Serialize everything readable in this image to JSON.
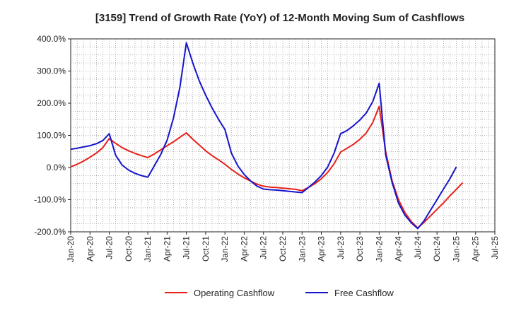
{
  "chart_data": {
    "type": "line",
    "title": "[3159]  Trend of Growth Rate (YoY) of 12-Month Moving Sum of Cashflows",
    "xlabel": "",
    "ylabel": "",
    "ylim": [
      -200,
      400
    ],
    "y_ticks": [
      400,
      300,
      200,
      100,
      0,
      -100,
      -200
    ],
    "y_tick_labels": [
      "400.0%",
      "300.0%",
      "200.0%",
      "100.0%",
      "0.0%",
      "-100.0%",
      "-200.0%"
    ],
    "x_ticks": [
      "2020-01",
      "2020-04",
      "2020-07",
      "2020-10",
      "2021-01",
      "2021-04",
      "2021-07",
      "2021-10",
      "2022-01",
      "2022-04",
      "2022-07",
      "2022-10",
      "2023-01",
      "2023-04",
      "2023-07",
      "2023-10",
      "2024-01",
      "2024-04",
      "2024-07",
      "2024-10",
      "2025-01",
      "2025-04",
      "2025-07"
    ],
    "x_tick_labels": [
      "Jan-20",
      "Apr-20",
      "Jul-20",
      "Oct-20",
      "Jan-21",
      "Apr-21",
      "Jul-21",
      "Oct-21",
      "Jan-22",
      "Apr-22",
      "Jul-22",
      "Oct-22",
      "Jan-23",
      "Apr-23",
      "Jul-23",
      "Oct-23",
      "Jan-24",
      "Apr-24",
      "Jul-24",
      "Oct-24",
      "Jan-25",
      "Apr-25",
      "Jul-25"
    ],
    "x_range": [
      "2020-01",
      "2025-07"
    ],
    "grid": true,
    "legend_position": "bottom-center",
    "series": [
      {
        "name": "Operating Cashflow",
        "color": "#e8211a",
        "points": [
          [
            "2020-01",
            2
          ],
          [
            "2020-02",
            10
          ],
          [
            "2020-03",
            20
          ],
          [
            "2020-04",
            32
          ],
          [
            "2020-05",
            45
          ],
          [
            "2020-06",
            62
          ],
          [
            "2020-07",
            90
          ],
          [
            "2020-08",
            75
          ],
          [
            "2020-09",
            62
          ],
          [
            "2020-10",
            52
          ],
          [
            "2020-11",
            44
          ],
          [
            "2020-12",
            37
          ],
          [
            "2021-01",
            31
          ],
          [
            "2021-02",
            42
          ],
          [
            "2021-03",
            55
          ],
          [
            "2021-04",
            68
          ],
          [
            "2021-05",
            80
          ],
          [
            "2021-06",
            94
          ],
          [
            "2021-07",
            108
          ],
          [
            "2021-08",
            88
          ],
          [
            "2021-09",
            70
          ],
          [
            "2021-10",
            52
          ],
          [
            "2021-11",
            37
          ],
          [
            "2021-12",
            24
          ],
          [
            "2022-01",
            10
          ],
          [
            "2022-02",
            -6
          ],
          [
            "2022-03",
            -20
          ],
          [
            "2022-04",
            -32
          ],
          [
            "2022-05",
            -42
          ],
          [
            "2022-06",
            -52
          ],
          [
            "2022-07",
            -58
          ],
          [
            "2022-08",
            -61
          ],
          [
            "2022-09",
            -62
          ],
          [
            "2022-10",
            -64
          ],
          [
            "2022-11",
            -66
          ],
          [
            "2022-12",
            -68
          ],
          [
            "2023-01",
            -72
          ],
          [
            "2023-02",
            -62
          ],
          [
            "2023-03",
            -50
          ],
          [
            "2023-04",
            -35
          ],
          [
            "2023-05",
            -15
          ],
          [
            "2023-06",
            12
          ],
          [
            "2023-07",
            48
          ],
          [
            "2023-08",
            60
          ],
          [
            "2023-09",
            72
          ],
          [
            "2023-10",
            88
          ],
          [
            "2023-11",
            108
          ],
          [
            "2023-12",
            140
          ],
          [
            "2024-01",
            190
          ],
          [
            "2024-02",
            50
          ],
          [
            "2024-03",
            -40
          ],
          [
            "2024-04",
            -100
          ],
          [
            "2024-05",
            -140
          ],
          [
            "2024-06",
            -168
          ],
          [
            "2024-07",
            -188
          ],
          [
            "2024-08",
            -170
          ],
          [
            "2024-09",
            -150
          ],
          [
            "2024-10",
            -130
          ],
          [
            "2024-11",
            -110
          ],
          [
            "2024-12",
            -88
          ],
          [
            "2025-01",
            -68
          ],
          [
            "2025-02",
            -47
          ]
        ]
      },
      {
        "name": "Free Cashflow",
        "color": "#1515cc",
        "points": [
          [
            "2020-01",
            57
          ],
          [
            "2020-02",
            60
          ],
          [
            "2020-03",
            64
          ],
          [
            "2020-04",
            68
          ],
          [
            "2020-05",
            74
          ],
          [
            "2020-06",
            84
          ],
          [
            "2020-07",
            105
          ],
          [
            "2020-08",
            38
          ],
          [
            "2020-09",
            8
          ],
          [
            "2020-10",
            -8
          ],
          [
            "2020-11",
            -18
          ],
          [
            "2020-12",
            -25
          ],
          [
            "2021-01",
            -30
          ],
          [
            "2021-02",
            5
          ],
          [
            "2021-03",
            40
          ],
          [
            "2021-04",
            85
          ],
          [
            "2021-05",
            155
          ],
          [
            "2021-06",
            250
          ],
          [
            "2021-07",
            388
          ],
          [
            "2021-08",
            325
          ],
          [
            "2021-09",
            270
          ],
          [
            "2021-10",
            225
          ],
          [
            "2021-11",
            185
          ],
          [
            "2021-12",
            150
          ],
          [
            "2022-01",
            118
          ],
          [
            "2022-02",
            45
          ],
          [
            "2022-03",
            5
          ],
          [
            "2022-04",
            -22
          ],
          [
            "2022-05",
            -42
          ],
          [
            "2022-06",
            -58
          ],
          [
            "2022-07",
            -67
          ],
          [
            "2022-08",
            -69
          ],
          [
            "2022-09",
            -70
          ],
          [
            "2022-10",
            -72
          ],
          [
            "2022-11",
            -74
          ],
          [
            "2022-12",
            -76
          ],
          [
            "2023-01",
            -78
          ],
          [
            "2023-02",
            -62
          ],
          [
            "2023-03",
            -45
          ],
          [
            "2023-04",
            -25
          ],
          [
            "2023-05",
            2
          ],
          [
            "2023-06",
            45
          ],
          [
            "2023-07",
            105
          ],
          [
            "2023-08",
            115
          ],
          [
            "2023-09",
            130
          ],
          [
            "2023-10",
            148
          ],
          [
            "2023-11",
            170
          ],
          [
            "2023-12",
            205
          ],
          [
            "2024-01",
            262
          ],
          [
            "2024-02",
            40
          ],
          [
            "2024-03",
            -45
          ],
          [
            "2024-04",
            -110
          ],
          [
            "2024-05",
            -148
          ],
          [
            "2024-06",
            -172
          ],
          [
            "2024-07",
            -190
          ],
          [
            "2024-08",
            -165
          ],
          [
            "2024-09",
            -132
          ],
          [
            "2024-10",
            -100
          ],
          [
            "2024-11",
            -67
          ],
          [
            "2024-12",
            -35
          ],
          [
            "2025-01",
            2
          ]
        ]
      }
    ]
  }
}
